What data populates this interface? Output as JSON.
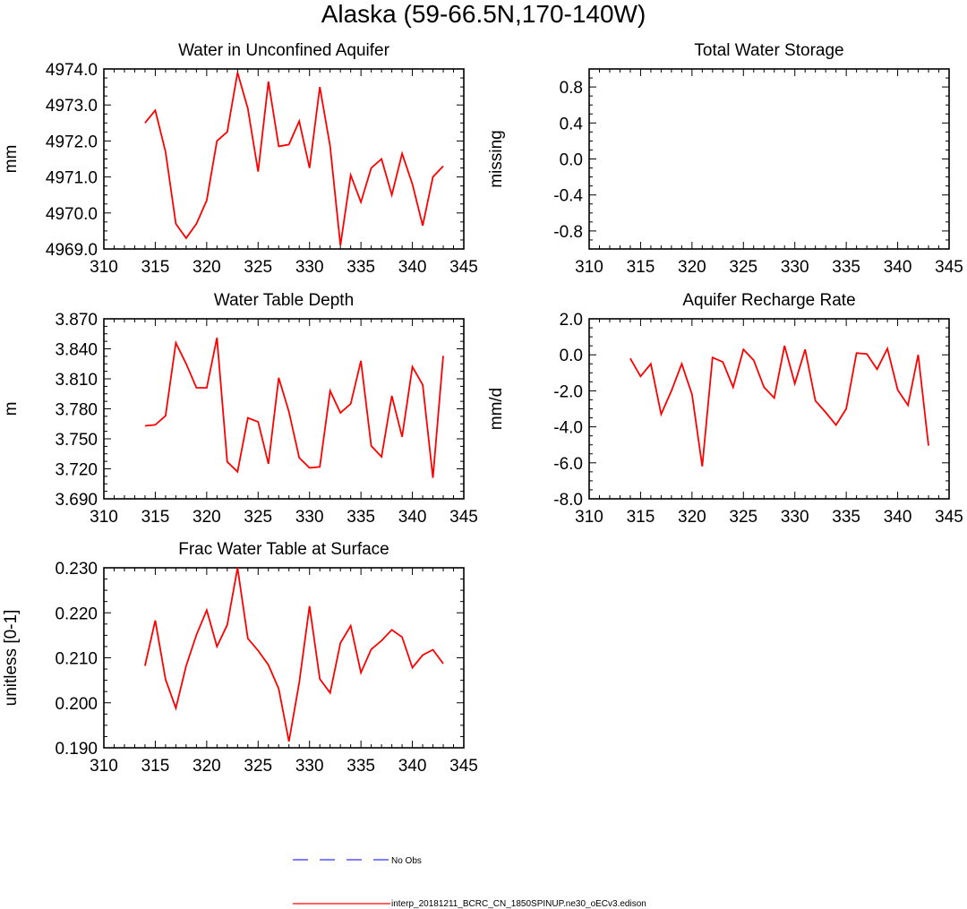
{
  "figure_title": "Alaska (59-66.5N,170-140W)",
  "legend": {
    "items": [
      {
        "label": "No Obs",
        "color": "#3333ff",
        "style": "dashed"
      },
      {
        "label": "interp_20181211_BCRC_CN_1850SPINUP.ne30_oECv3.edison",
        "color": "#ff0000",
        "style": "solid"
      }
    ]
  },
  "chart_data": [
    {
      "type": "line",
      "title": "Water in Unconfined Aquifer",
      "xlabel": "",
      "ylabel": "mm",
      "xlim": [
        310,
        345
      ],
      "ylim": [
        4969.0,
        4974.0
      ],
      "xticks": [
        "310",
        "315",
        "320",
        "325",
        "330",
        "335",
        "340",
        "345"
      ],
      "yticks": [
        "4969.0",
        "4970.0",
        "4971.0",
        "4972.0",
        "4973.0",
        "4974.0"
      ],
      "x": [
        314,
        315,
        316,
        317,
        318,
        319,
        320,
        321,
        322,
        323,
        324,
        325,
        326,
        327,
        328,
        329,
        330,
        331,
        332,
        333,
        334,
        335,
        336,
        337,
        338,
        339,
        340,
        341,
        342,
        343
      ],
      "series": [
        {
          "values": [
            4972.5,
            4972.85,
            4971.7,
            4969.7,
            4969.3,
            4969.7,
            4970.35,
            4972.0,
            4972.25,
            4973.9,
            4972.9,
            4971.15,
            4973.65,
            4971.85,
            4971.9,
            4972.55,
            4971.25,
            4973.5,
            4971.85,
            4969.1,
            4971.05,
            4970.3,
            4971.25,
            4971.5,
            4970.5,
            4971.65,
            4970.8,
            4969.65,
            4971.0,
            4971.3
          ]
        }
      ]
    },
    {
      "type": "line",
      "title": "Total Water Storage",
      "xlabel": "",
      "ylabel": "missing",
      "xlim": [
        310,
        345
      ],
      "ylim": [
        -1.0,
        1.0
      ],
      "xticks": [
        "310",
        "315",
        "320",
        "325",
        "330",
        "335",
        "340",
        "345"
      ],
      "yticks": [
        "-0.8",
        "-0.4",
        "0.0",
        "0.4",
        "0.8"
      ],
      "x": [],
      "series": []
    },
    {
      "type": "line",
      "title": "Water Table Depth",
      "xlabel": "",
      "ylabel": "m",
      "xlim": [
        310,
        345
      ],
      "ylim": [
        3.69,
        3.87
      ],
      "xticks": [
        "310",
        "315",
        "320",
        "325",
        "330",
        "335",
        "340",
        "345"
      ],
      "yticks": [
        "3.690",
        "3.720",
        "3.750",
        "3.780",
        "3.810",
        "3.840",
        "3.870"
      ],
      "x": [
        314,
        315,
        316,
        317,
        318,
        319,
        320,
        321,
        322,
        323,
        324,
        325,
        326,
        327,
        328,
        329,
        330,
        331,
        332,
        333,
        334,
        335,
        336,
        337,
        338,
        339,
        340,
        341,
        342,
        343
      ],
      "series": [
        {
          "values": [
            3.763,
            3.764,
            3.773,
            3.846,
            3.825,
            3.801,
            3.801,
            3.851,
            3.727,
            3.717,
            3.771,
            3.767,
            3.725,
            3.811,
            3.777,
            3.731,
            3.721,
            3.722,
            3.798,
            3.776,
            3.785,
            3.828,
            3.743,
            3.732,
            3.793,
            3.752,
            3.822,
            3.804,
            3.711,
            3.833
          ]
        }
      ]
    },
    {
      "type": "line",
      "title": "Aquifer Recharge Rate",
      "xlabel": "",
      "ylabel": "mm/d",
      "xlim": [
        310,
        345
      ],
      "ylim": [
        -8.0,
        2.0
      ],
      "xticks": [
        "310",
        "315",
        "320",
        "325",
        "330",
        "335",
        "340",
        "345"
      ],
      "yticks": [
        "-8.0",
        "-6.0",
        "-4.0",
        "-2.0",
        "0.0",
        "2.0"
      ],
      "x": [
        314,
        315,
        316,
        317,
        318,
        319,
        320,
        321,
        322,
        323,
        324,
        325,
        326,
        327,
        328,
        329,
        330,
        331,
        332,
        333,
        334,
        335,
        336,
        337,
        338,
        339,
        340,
        341,
        342,
        343
      ],
      "series": [
        {
          "values": [
            -0.2,
            -1.2,
            -0.5,
            -3.3,
            -2.0,
            -0.5,
            -2.2,
            -6.2,
            -0.15,
            -0.4,
            -1.8,
            0.3,
            -0.3,
            -1.8,
            -2.4,
            0.5,
            -1.6,
            0.3,
            -2.55,
            -3.2,
            -3.9,
            -3.0,
            0.1,
            0.05,
            -0.8,
            0.35,
            -1.95,
            -2.8,
            0.0,
            -5.05
          ]
        }
      ]
    },
    {
      "type": "line",
      "title": "Frac Water Table at Surface",
      "xlabel": "",
      "ylabel": "unitless [0-1]",
      "xlim": [
        310,
        345
      ],
      "ylim": [
        0.19,
        0.23
      ],
      "xticks": [
        "310",
        "315",
        "320",
        "325",
        "330",
        "335",
        "340",
        "345"
      ],
      "yticks": [
        "0.190",
        "0.200",
        "0.210",
        "0.220",
        "0.230"
      ],
      "x": [
        314,
        315,
        316,
        317,
        318,
        319,
        320,
        321,
        322,
        323,
        324,
        325,
        326,
        327,
        328,
        329,
        330,
        331,
        332,
        333,
        334,
        335,
        336,
        337,
        338,
        339,
        340,
        341,
        342,
        343
      ],
      "series": [
        {
          "values": [
            0.2082,
            0.2183,
            0.2052,
            0.1988,
            0.2082,
            0.2151,
            0.2206,
            0.2125,
            0.2173,
            0.23,
            0.2143,
            0.2116,
            0.2084,
            0.2031,
            0.1914,
            0.2045,
            0.2215,
            0.2053,
            0.2022,
            0.2133,
            0.2171,
            0.2067,
            0.2119,
            0.2138,
            0.2162,
            0.2146,
            0.2078,
            0.2106,
            0.2118,
            0.2087
          ]
        }
      ]
    }
  ]
}
